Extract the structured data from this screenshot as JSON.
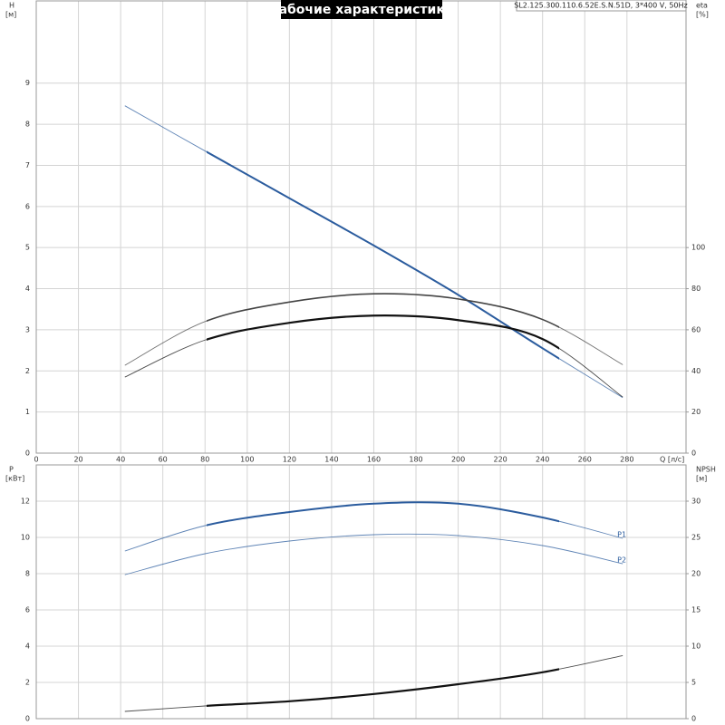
{
  "chart_data": [
    {
      "type": "line",
      "title": "Рабочие характеристики",
      "subtitle": "SL2.125.300.110.6.52E.S.N.51D, 3*400 V, 50Hz",
      "xlabel": "Q [л/с]",
      "ylabel": "H",
      "yunit": "[м]",
      "y2label": "eta",
      "y2unit": "[%]",
      "xlim": [
        0,
        308
      ],
      "xticks": [
        0,
        20,
        40,
        60,
        80,
        100,
        120,
        140,
        160,
        180,
        200,
        220,
        240,
        260,
        280
      ],
      "show_xtick_labels": true,
      "ylim": [
        0,
        11
      ],
      "yticks": [
        0,
        1,
        2,
        3,
        4,
        5,
        6,
        7,
        8,
        9
      ],
      "y2lim": [
        0,
        220
      ],
      "y2ticks": [
        0,
        20,
        40,
        60,
        80,
        100
      ],
      "grid": true,
      "x": [
        42,
        80,
        120,
        160,
        200,
        240,
        278
      ],
      "series": [
        {
          "color": "#2b5c9e",
          "values": [
            8.45,
            7.35,
            6.2,
            5.05,
            3.85,
            2.55,
            1.35
          ]
        },
        {
          "color": "#444444",
          "axis": "y2",
          "values": [
            42.7,
            64,
            73.5,
            77.5,
            75,
            65,
            43
          ]
        },
        {
          "color": "#111111",
          "axis": "y2",
          "values": [
            37,
            55,
            63.4,
            66.9,
            64.7,
            55.5,
            27.3
          ]
        }
      ]
    },
    {
      "type": "line",
      "ylabel": "P",
      "yunit": "[кВт]",
      "y2label": "NPSH",
      "y2unit": "[м]",
      "xlim": [
        0,
        308
      ],
      "xticks": [
        0,
        20,
        40,
        60,
        80,
        100,
        120,
        140,
        160,
        180,
        200,
        220,
        240,
        260,
        280
      ],
      "show_xtick_labels": false,
      "ylim": [
        0,
        14
      ],
      "yticks": [
        0,
        2,
        4,
        6,
        8,
        10,
        12
      ],
      "y2lim": [
        0,
        35
      ],
      "y2ticks": [
        0,
        5,
        10,
        15,
        20,
        25,
        30
      ],
      "grid": true,
      "x": [
        42,
        80,
        120,
        160,
        200,
        240,
        278
      ],
      "series": [
        {
          "name": "P1",
          "color": "#2b5c9e",
          "values": [
            9.25,
            10.65,
            11.4,
            11.86,
            11.86,
            11.1,
            9.95
          ]
        },
        {
          "name": "P2",
          "color": "#2b5c9e",
          "values": [
            7.94,
            9.1,
            9.8,
            10.15,
            10.1,
            9.55,
            8.55
          ]
        },
        {
          "color": "#111111",
          "axis": "y2",
          "values": [
            1.0,
            1.75,
            2.4,
            3.4,
            4.75,
            6.4,
            8.7
          ]
        }
      ]
    }
  ]
}
